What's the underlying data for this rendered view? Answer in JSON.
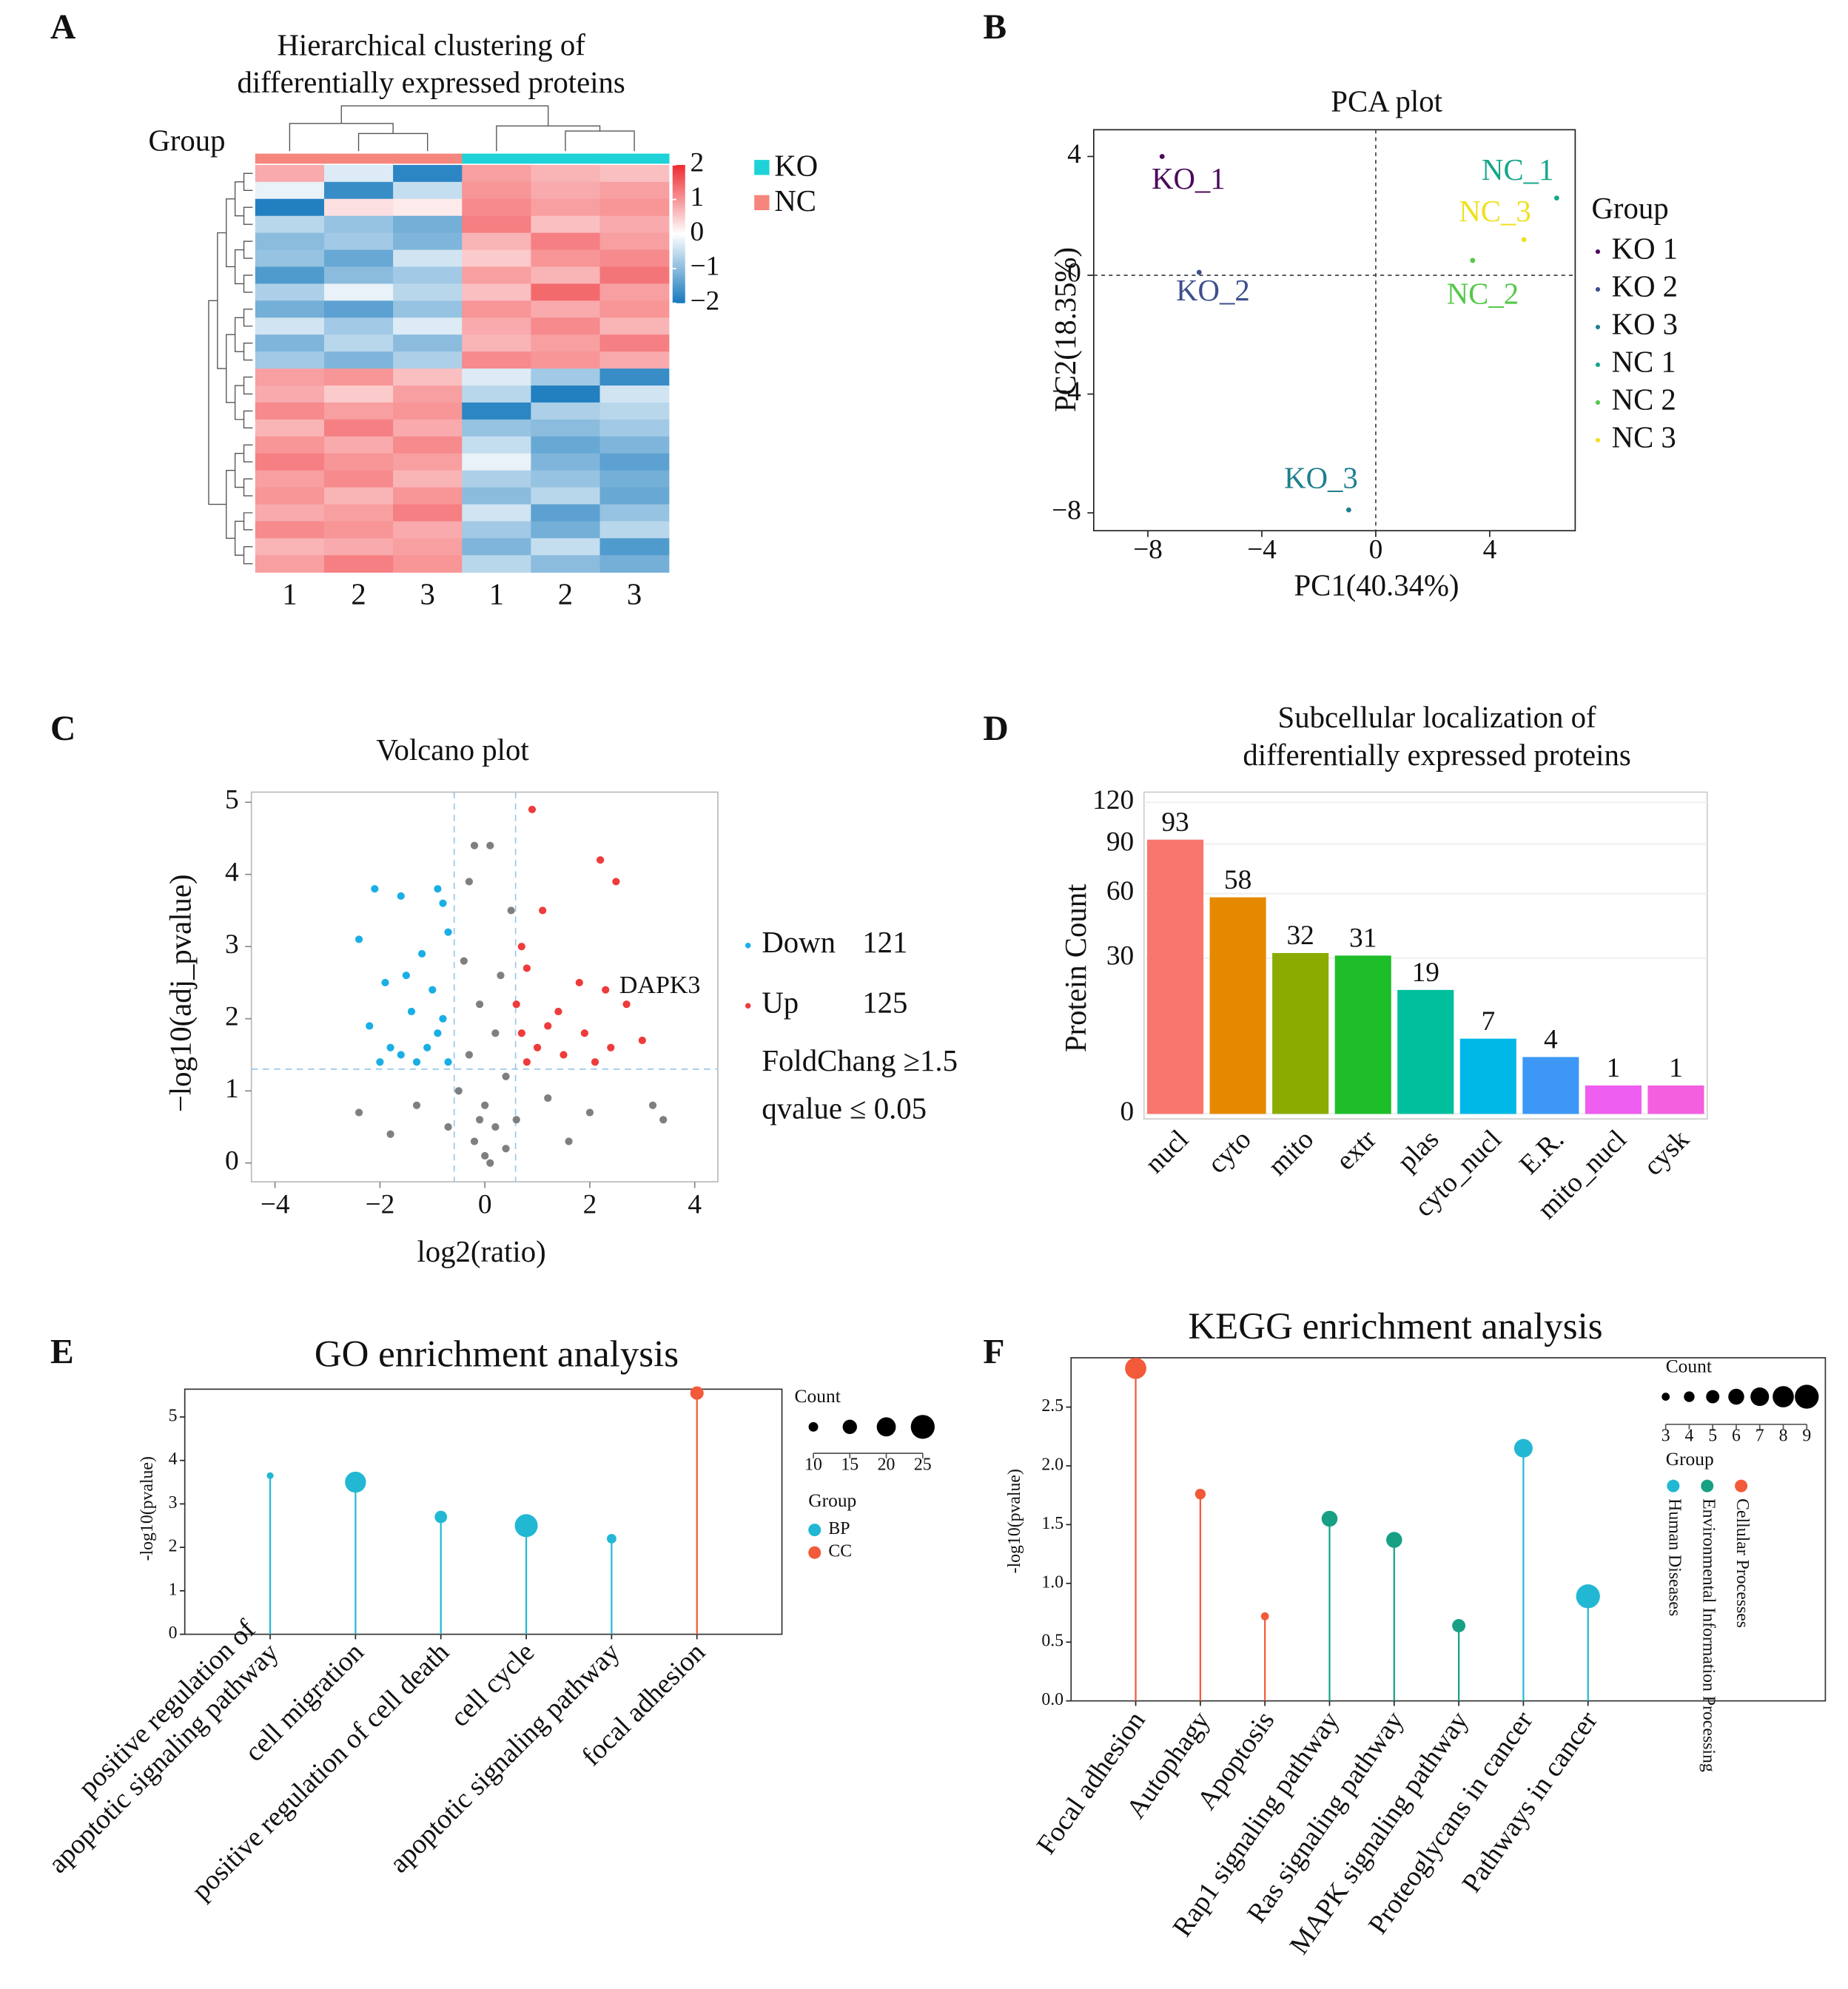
{
  "chart_data": [
    {
      "panel": "A",
      "type": "heatmap",
      "title": [
        "Hierarchical clustering of",
        "differentially expressed proteins"
      ],
      "group_label": "Group",
      "columns": [
        "1",
        "2",
        "3",
        "1",
        "2",
        "3"
      ],
      "groups": [
        "NC",
        "NC",
        "NC",
        "KO",
        "KO",
        "KO"
      ],
      "legend": [
        {
          "name": "KO",
          "color": "#1dd3d8"
        },
        {
          "name": "NC",
          "color": "#f5867d"
        }
      ],
      "colors": [
        "#1679bd",
        "#ffffff",
        "#ee2a2f"
      ],
      "zlim": [
        -2,
        2
      ],
      "zticks": [
        2,
        1,
        0,
        {
          "value": -1,
          "label": "−1"
        },
        {
          "value": -2,
          "label": "−2"
        }
      ],
      "z": [
        [
          0.8,
          -0.3,
          -1.8,
          0.9,
          0.7,
          0.6
        ],
        [
          -0.2,
          -1.7,
          -0.5,
          1.0,
          0.8,
          0.9
        ],
        [
          -1.9,
          0.3,
          0.2,
          1.1,
          0.9,
          1.0
        ],
        [
          -0.6,
          -0.9,
          -1.2,
          1.2,
          0.6,
          0.8
        ],
        [
          -1.0,
          -0.8,
          -1.1,
          0.7,
          1.2,
          0.9
        ],
        [
          -0.9,
          -1.3,
          -0.4,
          0.5,
          1.0,
          1.1
        ],
        [
          -1.5,
          -1.0,
          -0.8,
          0.9,
          0.7,
          1.3
        ],
        [
          -0.7,
          -0.2,
          -0.6,
          0.6,
          1.4,
          0.9
        ],
        [
          -1.2,
          -1.4,
          -0.9,
          1.0,
          0.8,
          1.0
        ],
        [
          -0.4,
          -0.8,
          -0.3,
          0.8,
          1.1,
          0.7
        ],
        [
          -1.1,
          -0.6,
          -1.0,
          0.7,
          0.9,
          1.2
        ],
        [
          -0.8,
          -1.1,
          -0.7,
          1.1,
          1.0,
          0.8
        ],
        [
          0.9,
          1.0,
          0.6,
          -0.3,
          -0.8,
          -1.7
        ],
        [
          0.8,
          0.5,
          0.9,
          -0.6,
          -1.9,
          -0.4
        ],
        [
          1.1,
          0.9,
          1.0,
          -1.8,
          -0.7,
          -0.6
        ],
        [
          0.7,
          1.2,
          0.8,
          -0.9,
          -1.0,
          -0.8
        ],
        [
          1.0,
          0.8,
          1.1,
          -0.5,
          -1.3,
          -1.1
        ],
        [
          1.2,
          1.0,
          0.9,
          -0.2,
          -1.1,
          -1.4
        ],
        [
          0.9,
          1.1,
          0.7,
          -0.7,
          -0.9,
          -1.2
        ],
        [
          1.0,
          0.7,
          1.0,
          -1.0,
          -0.6,
          -1.3
        ],
        [
          0.8,
          0.9,
          1.2,
          -0.4,
          -1.4,
          -0.9
        ],
        [
          1.1,
          1.0,
          0.8,
          -0.8,
          -1.2,
          -0.6
        ],
        [
          0.7,
          0.8,
          0.9,
          -1.1,
          -0.5,
          -1.5
        ],
        [
          0.9,
          1.2,
          1.0,
          -0.6,
          -1.0,
          -1.2
        ]
      ]
    },
    {
      "panel": "B",
      "type": "scatter",
      "title": "PCA plot",
      "xlabel": "PC1(40.34%)",
      "ylabel": "PC2(18.35%)",
      "xlim": [
        -9.9,
        7.0
      ],
      "ylim": [
        -8.6,
        4.9
      ],
      "xticks": [
        {
          "value": -8,
          "label": "−8"
        },
        {
          "value": -4,
          "label": "−4"
        },
        0,
        4
      ],
      "yticks": [
        4,
        0,
        {
          "value": -4,
          "label": "−4"
        },
        {
          "value": -8,
          "label": "−8"
        }
      ],
      "xref": 0,
      "yref": 0,
      "legend_title": "Group",
      "series": [
        {
          "name": "KO 1",
          "label": "KO_1",
          "color": "#4a0a5a",
          "x": [
            -7.5
          ],
          "y": [
            4.0
          ]
        },
        {
          "name": "KO 2",
          "label": "KO_2",
          "color": "#3d4f8c",
          "x": [
            -6.2
          ],
          "y": [
            0.1
          ]
        },
        {
          "name": "KO 3",
          "label": "KO_3",
          "color": "#1f7f8e",
          "x": [
            -0.95
          ],
          "y": [
            -7.9
          ]
        },
        {
          "name": "NC 1",
          "label": "NC_1",
          "color": "#17a68a",
          "x": [
            6.35
          ],
          "y": [
            2.6
          ]
        },
        {
          "name": "NC 2",
          "label": "NC_2",
          "color": "#53c94a",
          "x": [
            3.4
          ],
          "y": [
            0.5
          ]
        },
        {
          "name": "NC 3",
          "label": "NC_3",
          "color": "#f0e020",
          "x": [
            5.2
          ],
          "y": [
            1.2
          ]
        }
      ]
    },
    {
      "panel": "C",
      "type": "volcano",
      "title": "Volcano plot",
      "xlabel": "log2(ratio)",
      "ylabel": "−log10(adj_pvalue)",
      "xlim": [
        -4.45,
        4.44
      ],
      "ylim": [
        -0.26,
        5.14
      ],
      "xticks": [
        {
          "value": -4,
          "label": "−4"
        },
        {
          "value": -2,
          "label": "−2"
        },
        0,
        2,
        4
      ],
      "yticks": [
        0,
        1,
        2,
        3,
        4,
        5
      ],
      "vlines": [
        -0.585,
        0.585
      ],
      "hlines": [
        1.301
      ],
      "annotation": {
        "text": "DAPK3",
        "x": 2.3,
        "y": 2.4
      },
      "notes": [
        "FoldChang ≥1.5",
        "qvalue ≤ 0.05"
      ],
      "series": [
        {
          "color": "#7f7f7f",
          "x": [
            -0.2,
            0.1,
            -0.3,
            0.5,
            -0.4,
            0.3,
            -0.1,
            0.2,
            -0.3,
            0.4,
            -0.5,
            0.0,
            0.2,
            -0.2,
            0.0,
            0.6,
            -0.7,
            1.2,
            -1.3,
            2.0,
            -2.4,
            3.2,
            3.4,
            -1.8,
            1.6,
            0.1,
            -0.1,
            0.4
          ],
          "y": [
            4.4,
            4.4,
            3.9,
            3.5,
            2.8,
            2.6,
            2.2,
            1.8,
            1.5,
            1.2,
            1.0,
            0.8,
            0.5,
            0.3,
            0.1,
            0.6,
            0.5,
            0.9,
            0.8,
            0.7,
            0.7,
            0.8,
            0.6,
            0.4,
            0.3,
            0.0,
            0.6,
            0.2
          ]
        },
        {
          "name": "Down",
          "count": 121,
          "color": "#1aaee6",
          "x": [
            -2.4,
            -2.1,
            -1.6,
            -0.9,
            -0.8,
            -1.9,
            -1.5,
            -1.2,
            -0.7,
            -2.2,
            -1.8,
            -1.4,
            -1.0,
            -0.8,
            -1.6,
            -1.1,
            -0.7,
            -2.0,
            -0.9,
            -1.3
          ],
          "y": [
            3.1,
            3.8,
            3.7,
            3.8,
            3.6,
            2.5,
            2.6,
            2.9,
            3.2,
            1.9,
            1.6,
            2.1,
            2.4,
            2.0,
            1.5,
            1.6,
            1.4,
            1.4,
            1.8,
            1.4
          ]
        },
        {
          "name": "Up",
          "count": 125,
          "color": "#ee3b3b",
          "x": [
            0.9,
            2.2,
            2.5,
            1.1,
            0.7,
            1.8,
            2.3,
            0.8,
            1.4,
            2.7,
            3.0,
            1.0,
            1.5,
            0.7,
            2.4,
            1.9,
            0.6,
            1.2,
            2.1,
            0.8
          ],
          "y": [
            4.9,
            4.2,
            3.9,
            3.5,
            3.0,
            2.5,
            2.4,
            2.7,
            2.1,
            2.2,
            1.7,
            1.6,
            1.5,
            1.8,
            1.6,
            1.8,
            2.2,
            1.9,
            1.4,
            1.4
          ]
        }
      ]
    },
    {
      "panel": "D",
      "type": "bar",
      "title": [
        "Subcellular localization of",
        "differentially expressed proteins"
      ],
      "ylabel": "Protein Count",
      "categories": [
        "nucl",
        "cyto",
        "mito",
        "extr",
        "plas",
        "cyto_nucl",
        "E.R.",
        "mito_nucl",
        "cysk"
      ],
      "values": [
        93,
        58,
        32,
        31,
        19,
        7,
        4,
        1,
        1
      ],
      "colors": [
        "#f8766d",
        "#e58a00",
        "#8aab00",
        "#1ebd2a",
        "#00bf9c",
        "#00b8e7",
        "#3d98f5",
        "#ee5ef0",
        "#f45fe0"
      ],
      "yscale": "sqrt",
      "ylim": [
        0,
        128
      ],
      "yticks": [
        0,
        30,
        60,
        90,
        120
      ],
      "grid": true
    },
    {
      "panel": "E",
      "type": "lollipop",
      "title": "GO enrichment analysis",
      "ylabel": "-log10(pvalue)",
      "categories": [
        [
          "positive regulation of",
          "apoptotic signaling pathway"
        ],
        "cell migration",
        "positive regulation of cell death",
        "cell cycle",
        "apoptotic signaling pathway",
        "focal adhesion"
      ],
      "values": [
        3.65,
        3.5,
        2.7,
        2.5,
        2.2,
        5.55
      ],
      "counts": [
        7,
        22,
        13,
        24,
        10,
        14
      ],
      "groups": [
        "BP",
        "BP",
        "BP",
        "BP",
        "BP",
        "CC"
      ],
      "ylim": [
        0,
        5.64
      ],
      "yticks": [
        0,
        1,
        2,
        3,
        4,
        5
      ],
      "size_title": "Count",
      "size_ticks": [
        10,
        15,
        20,
        25
      ],
      "group_title": "Group",
      "group_legend": [
        {
          "name": "BP",
          "color": "#22b8d4"
        },
        {
          "name": "CC",
          "color": "#f25a3a"
        }
      ]
    },
    {
      "panel": "F",
      "type": "lollipop",
      "title": "KEGG enrichment analysis",
      "ylabel": "-log10(pvalue)",
      "categories": [
        "Focal adhesion",
        "Autophagy",
        "Apoptosis",
        "Rap1 signaling pathway",
        "Ras signaling pathway",
        "MAPK signaling pathway",
        "Proteoglycans in cancer",
        "Pathways in cancer"
      ],
      "values": [
        2.83,
        1.76,
        0.72,
        1.55,
        1.37,
        0.64,
        2.15,
        0.89
      ],
      "counts": [
        8,
        4,
        3,
        6,
        6,
        5,
        7,
        9
      ],
      "groups": [
        "Cellular Processes",
        "Cellular Processes",
        "Cellular Processes",
        "Environmental Information Processing",
        "Environmental Information Processing",
        "Environmental Information Processing",
        "Human Diseases",
        "Human Diseases"
      ],
      "ylim": [
        0,
        2.92
      ],
      "yticks": [
        {
          "value": 0,
          "label": "0.0"
        },
        0.5,
        {
          "value": 1,
          "label": "1.0"
        },
        1.5,
        {
          "value": 2,
          "label": "2.0"
        },
        2.5
      ],
      "size_title": "Count",
      "size_ticks": [
        3,
        4,
        5,
        6,
        7,
        8,
        9
      ],
      "group_title": "Group",
      "group_legend": [
        {
          "name": "Human Diseases",
          "color": "#22b8d4"
        },
        {
          "name": "Environmental Information Processing",
          "color": "#17a083"
        },
        {
          "name": "Cellular Processes",
          "color": "#f25a3a"
        }
      ]
    }
  ]
}
